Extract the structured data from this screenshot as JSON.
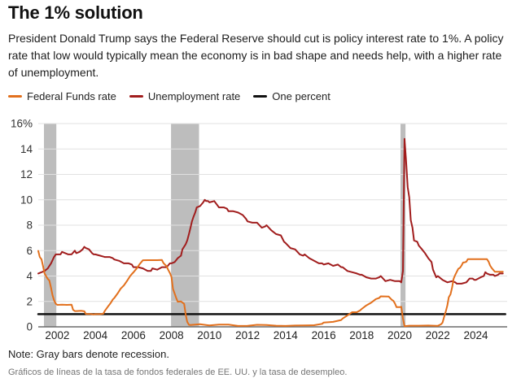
{
  "header": {
    "title": "The 1% solution",
    "subtitle": "President Donald Trump says the Federal Reserve should cut is policy interest rate to 1%. A policy rate that low would typically mean the economy is in bad shape and needs help, with a higher rate of unemployment."
  },
  "footer": {
    "note": "Note: Gray bars denote recession.",
    "caption": "Gráficos de líneas de la tasa de fondos federales de EE. UU. y la tasa de desempleo."
  },
  "chart_data": {
    "type": "line",
    "title": "",
    "xlabel": "",
    "ylabel": "",
    "xlim": [
      2001,
      2025.78
    ],
    "ylim": [
      0,
      16
    ],
    "grid": true,
    "grid_color": "#e1e1e1",
    "axis_color": "#6b6b6b",
    "tick_color": "#333333",
    "recession_color": "#bdbdbd",
    "recessions": [
      [
        2001.3,
        2001.95
      ],
      [
        2007.98,
        2009.45
      ],
      [
        2020.04,
        2020.3
      ]
    ],
    "y_ticks": [
      [
        0,
        "0"
      ],
      [
        2,
        "2"
      ],
      [
        4,
        "4"
      ],
      [
        6,
        "6"
      ],
      [
        8,
        "8"
      ],
      [
        10,
        "10"
      ],
      [
        12,
        "12"
      ],
      [
        14,
        "14"
      ],
      [
        16,
        "16%"
      ]
    ],
    "x_ticks": [
      2002,
      2004,
      2006,
      2008,
      2010,
      2012,
      2014,
      2016,
      2018,
      2020,
      2022,
      2024
    ],
    "legend_position": "top",
    "series": [
      {
        "name": "Federal Funds rate",
        "color": "#e2701d",
        "width": 2,
        "points": [
          [
            2001.0,
            5.98
          ],
          [
            2001.08,
            5.49
          ],
          [
            2001.17,
            5.31
          ],
          [
            2001.25,
            4.8
          ],
          [
            2001.33,
            4.21
          ],
          [
            2001.42,
            3.97
          ],
          [
            2001.5,
            3.77
          ],
          [
            2001.58,
            3.65
          ],
          [
            2001.67,
            3.07
          ],
          [
            2001.75,
            2.49
          ],
          [
            2001.83,
            2.09
          ],
          [
            2001.92,
            1.82
          ],
          [
            2002.0,
            1.73
          ],
          [
            2002.25,
            1.75
          ],
          [
            2002.5,
            1.73
          ],
          [
            2002.75,
            1.75
          ],
          [
            2002.83,
            1.34
          ],
          [
            2002.92,
            1.24
          ],
          [
            2003.0,
            1.24
          ],
          [
            2003.25,
            1.26
          ],
          [
            2003.42,
            1.22
          ],
          [
            2003.5,
            1.01
          ],
          [
            2003.75,
            1.01
          ],
          [
            2003.92,
            0.98
          ],
          [
            2004.0,
            1.0
          ],
          [
            2004.25,
            1.0
          ],
          [
            2004.42,
            1.03
          ],
          [
            2004.5,
            1.26
          ],
          [
            2004.58,
            1.43
          ],
          [
            2004.67,
            1.61
          ],
          [
            2004.75,
            1.76
          ],
          [
            2004.83,
            1.93
          ],
          [
            2004.92,
            2.16
          ],
          [
            2005.0,
            2.28
          ],
          [
            2005.17,
            2.63
          ],
          [
            2005.33,
            3.0
          ],
          [
            2005.5,
            3.26
          ],
          [
            2005.67,
            3.62
          ],
          [
            2005.83,
            4.0
          ],
          [
            2005.92,
            4.16
          ],
          [
            2006.0,
            4.29
          ],
          [
            2006.17,
            4.59
          ],
          [
            2006.33,
            4.94
          ],
          [
            2006.5,
            5.24
          ],
          [
            2006.75,
            5.25
          ],
          [
            2007.0,
            5.25
          ],
          [
            2007.25,
            5.25
          ],
          [
            2007.5,
            5.26
          ],
          [
            2007.58,
            5.02
          ],
          [
            2007.75,
            4.76
          ],
          [
            2007.83,
            4.49
          ],
          [
            2007.92,
            4.24
          ],
          [
            2008.0,
            3.94
          ],
          [
            2008.08,
            2.98
          ],
          [
            2008.17,
            2.61
          ],
          [
            2008.25,
            2.28
          ],
          [
            2008.33,
            1.98
          ],
          [
            2008.5,
            2.0
          ],
          [
            2008.67,
            1.81
          ],
          [
            2008.75,
            0.97
          ],
          [
            2008.83,
            0.39
          ],
          [
            2008.92,
            0.16
          ],
          [
            2009.0,
            0.15
          ],
          [
            2009.5,
            0.21
          ],
          [
            2010.0,
            0.11
          ],
          [
            2010.5,
            0.18
          ],
          [
            2011.0,
            0.17
          ],
          [
            2011.5,
            0.07
          ],
          [
            2012.0,
            0.08
          ],
          [
            2012.5,
            0.16
          ],
          [
            2013.0,
            0.14
          ],
          [
            2013.5,
            0.09
          ],
          [
            2014.0,
            0.07
          ],
          [
            2014.5,
            0.1
          ],
          [
            2015.0,
            0.11
          ],
          [
            2015.5,
            0.13
          ],
          [
            2015.92,
            0.24
          ],
          [
            2016.0,
            0.34
          ],
          [
            2016.5,
            0.39
          ],
          [
            2016.92,
            0.54
          ],
          [
            2017.0,
            0.65
          ],
          [
            2017.25,
            0.9
          ],
          [
            2017.5,
            1.15
          ],
          [
            2017.75,
            1.15
          ],
          [
            2017.92,
            1.3
          ],
          [
            2018.0,
            1.41
          ],
          [
            2018.25,
            1.69
          ],
          [
            2018.5,
            1.91
          ],
          [
            2018.75,
            2.19
          ],
          [
            2018.92,
            2.27
          ],
          [
            2019.0,
            2.4
          ],
          [
            2019.42,
            2.38
          ],
          [
            2019.58,
            2.13
          ],
          [
            2019.67,
            2.04
          ],
          [
            2019.75,
            1.83
          ],
          [
            2019.83,
            1.55
          ],
          [
            2020.0,
            1.55
          ],
          [
            2020.08,
            1.58
          ],
          [
            2020.17,
            0.65
          ],
          [
            2020.25,
            0.05
          ],
          [
            2020.5,
            0.09
          ],
          [
            2021.0,
            0.09
          ],
          [
            2021.5,
            0.1
          ],
          [
            2021.92,
            0.08
          ],
          [
            2022.0,
            0.08
          ],
          [
            2022.17,
            0.2
          ],
          [
            2022.25,
            0.33
          ],
          [
            2022.33,
            0.77
          ],
          [
            2022.42,
            1.21
          ],
          [
            2022.5,
            1.68
          ],
          [
            2022.58,
            2.33
          ],
          [
            2022.67,
            2.56
          ],
          [
            2022.75,
            3.08
          ],
          [
            2022.83,
            3.78
          ],
          [
            2022.92,
            4.1
          ],
          [
            2023.0,
            4.33
          ],
          [
            2023.08,
            4.57
          ],
          [
            2023.17,
            4.65
          ],
          [
            2023.25,
            4.83
          ],
          [
            2023.33,
            5.06
          ],
          [
            2023.42,
            5.08
          ],
          [
            2023.5,
            5.12
          ],
          [
            2023.58,
            5.33
          ],
          [
            2024.0,
            5.33
          ],
          [
            2024.58,
            5.33
          ],
          [
            2024.67,
            5.13
          ],
          [
            2024.75,
            4.83
          ],
          [
            2024.83,
            4.64
          ],
          [
            2024.92,
            4.48
          ],
          [
            2025.0,
            4.33
          ],
          [
            2025.42,
            4.33
          ]
        ]
      },
      {
        "name": "Unemployment rate",
        "color": "#a11d1d",
        "width": 2,
        "points": [
          [
            2001.0,
            4.2
          ],
          [
            2001.17,
            4.3
          ],
          [
            2001.33,
            4.4
          ],
          [
            2001.5,
            4.6
          ],
          [
            2001.67,
            5.0
          ],
          [
            2001.83,
            5.5
          ],
          [
            2001.92,
            5.7
          ],
          [
            2002.0,
            5.7
          ],
          [
            2002.17,
            5.7
          ],
          [
            2002.25,
            5.9
          ],
          [
            2002.42,
            5.8
          ],
          [
            2002.58,
            5.7
          ],
          [
            2002.75,
            5.7
          ],
          [
            2002.92,
            6.0
          ],
          [
            2003.0,
            5.8
          ],
          [
            2003.17,
            5.9
          ],
          [
            2003.33,
            6.1
          ],
          [
            2003.42,
            6.3
          ],
          [
            2003.5,
            6.2
          ],
          [
            2003.67,
            6.1
          ],
          [
            2003.83,
            5.8
          ],
          [
            2003.92,
            5.7
          ],
          [
            2004.0,
            5.7
          ],
          [
            2004.25,
            5.6
          ],
          [
            2004.5,
            5.5
          ],
          [
            2004.75,
            5.5
          ],
          [
            2004.92,
            5.4
          ],
          [
            2005.0,
            5.3
          ],
          [
            2005.25,
            5.2
          ],
          [
            2005.5,
            5.0
          ],
          [
            2005.75,
            5.0
          ],
          [
            2005.92,
            4.9
          ],
          [
            2006.0,
            4.7
          ],
          [
            2006.25,
            4.7
          ],
          [
            2006.5,
            4.6
          ],
          [
            2006.75,
            4.4
          ],
          [
            2006.92,
            4.4
          ],
          [
            2007.0,
            4.6
          ],
          [
            2007.25,
            4.5
          ],
          [
            2007.5,
            4.7
          ],
          [
            2007.75,
            4.7
          ],
          [
            2007.92,
            5.0
          ],
          [
            2008.0,
            5.0
          ],
          [
            2008.17,
            5.1
          ],
          [
            2008.33,
            5.4
          ],
          [
            2008.5,
            5.6
          ],
          [
            2008.58,
            6.1
          ],
          [
            2008.75,
            6.5
          ],
          [
            2008.83,
            6.8
          ],
          [
            2008.92,
            7.3
          ],
          [
            2009.0,
            7.8
          ],
          [
            2009.08,
            8.3
          ],
          [
            2009.17,
            8.7
          ],
          [
            2009.25,
            9.0
          ],
          [
            2009.33,
            9.4
          ],
          [
            2009.5,
            9.5
          ],
          [
            2009.67,
            9.8
          ],
          [
            2009.75,
            10.0
          ],
          [
            2009.83,
            9.9
          ],
          [
            2009.92,
            9.9
          ],
          [
            2010.0,
            9.8
          ],
          [
            2010.25,
            9.9
          ],
          [
            2010.5,
            9.4
          ],
          [
            2010.75,
            9.4
          ],
          [
            2010.92,
            9.3
          ],
          [
            2011.0,
            9.1
          ],
          [
            2011.25,
            9.1
          ],
          [
            2011.5,
            9.0
          ],
          [
            2011.75,
            8.8
          ],
          [
            2011.92,
            8.5
          ],
          [
            2012.0,
            8.3
          ],
          [
            2012.25,
            8.2
          ],
          [
            2012.5,
            8.2
          ],
          [
            2012.75,
            7.8
          ],
          [
            2012.92,
            7.9
          ],
          [
            2013.0,
            8.0
          ],
          [
            2013.25,
            7.6
          ],
          [
            2013.5,
            7.3
          ],
          [
            2013.75,
            7.2
          ],
          [
            2013.92,
            6.7
          ],
          [
            2014.0,
            6.6
          ],
          [
            2014.25,
            6.2
          ],
          [
            2014.5,
            6.1
          ],
          [
            2014.75,
            5.7
          ],
          [
            2014.92,
            5.6
          ],
          [
            2015.0,
            5.7
          ],
          [
            2015.25,
            5.4
          ],
          [
            2015.5,
            5.2
          ],
          [
            2015.75,
            5.0
          ],
          [
            2015.92,
            5.0
          ],
          [
            2016.0,
            4.9
          ],
          [
            2016.25,
            5.0
          ],
          [
            2016.5,
            4.8
          ],
          [
            2016.75,
            4.9
          ],
          [
            2016.92,
            4.7
          ],
          [
            2017.0,
            4.7
          ],
          [
            2017.25,
            4.4
          ],
          [
            2017.5,
            4.3
          ],
          [
            2017.75,
            4.2
          ],
          [
            2017.92,
            4.1
          ],
          [
            2018.0,
            4.1
          ],
          [
            2018.25,
            3.9
          ],
          [
            2018.5,
            3.8
          ],
          [
            2018.75,
            3.8
          ],
          [
            2018.92,
            3.9
          ],
          [
            2019.0,
            4.0
          ],
          [
            2019.25,
            3.6
          ],
          [
            2019.5,
            3.7
          ],
          [
            2019.75,
            3.6
          ],
          [
            2019.92,
            3.6
          ],
          [
            2020.0,
            3.6
          ],
          [
            2020.08,
            3.5
          ],
          [
            2020.17,
            4.4
          ],
          [
            2020.25,
            14.8
          ],
          [
            2020.33,
            13.2
          ],
          [
            2020.42,
            11.0
          ],
          [
            2020.5,
            10.2
          ],
          [
            2020.58,
            8.4
          ],
          [
            2020.67,
            7.8
          ],
          [
            2020.75,
            6.8
          ],
          [
            2020.92,
            6.7
          ],
          [
            2021.0,
            6.4
          ],
          [
            2021.17,
            6.1
          ],
          [
            2021.33,
            5.8
          ],
          [
            2021.5,
            5.4
          ],
          [
            2021.67,
            5.1
          ],
          [
            2021.75,
            4.5
          ],
          [
            2021.92,
            3.9
          ],
          [
            2022.0,
            4.0
          ],
          [
            2022.25,
            3.7
          ],
          [
            2022.5,
            3.5
          ],
          [
            2022.75,
            3.6
          ],
          [
            2022.92,
            3.5
          ],
          [
            2023.0,
            3.4
          ],
          [
            2023.25,
            3.4
          ],
          [
            2023.5,
            3.5
          ],
          [
            2023.67,
            3.8
          ],
          [
            2023.83,
            3.8
          ],
          [
            2023.92,
            3.7
          ],
          [
            2024.0,
            3.7
          ],
          [
            2024.25,
            3.9
          ],
          [
            2024.42,
            4.0
          ],
          [
            2024.5,
            4.3
          ],
          [
            2024.58,
            4.2
          ],
          [
            2024.75,
            4.1
          ],
          [
            2024.92,
            4.1
          ],
          [
            2025.0,
            4.0
          ],
          [
            2025.17,
            4.1
          ],
          [
            2025.25,
            4.2
          ],
          [
            2025.42,
            4.2
          ]
        ]
      },
      {
        "name": "One percent",
        "color": "#111111",
        "width": 2.5,
        "points": [
          [
            2001.0,
            1
          ],
          [
            2025.55,
            1
          ]
        ]
      }
    ]
  }
}
